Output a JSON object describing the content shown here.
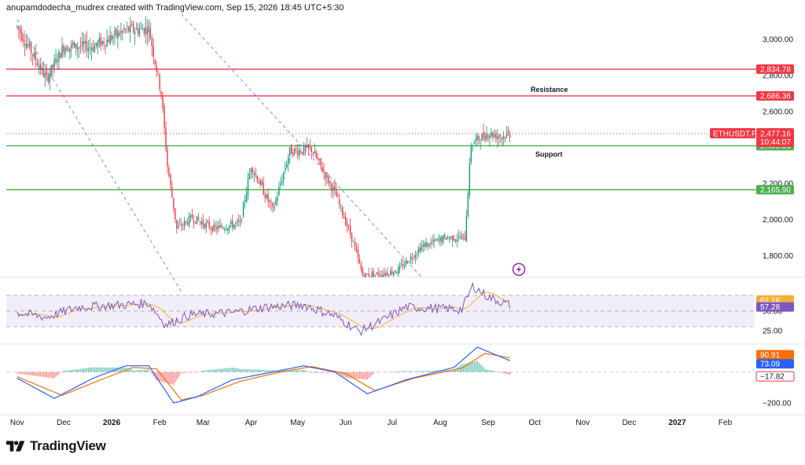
{
  "header": {
    "credit": "anupamdodecha_mudrex created with TradingView.com, Sep 15, 2026 18:45 UTC+5:30"
  },
  "logo": {
    "text": "TradingView"
  },
  "colors": {
    "up": "#089981",
    "down": "#f23645",
    "resistance": "#f23645",
    "support": "#4caf50",
    "trend": "#2962ff",
    "rsi": "#7e57c2",
    "rsi_ma": "#f2b13a",
    "macd": "#2962ff",
    "signal": "#ff6d00",
    "symbol_badge": "#f23645"
  },
  "chart_data": [
    {
      "type": "candlestick",
      "symbol": "ETHUSDT.P",
      "price_axis_ticks": [
        "3,000.00",
        "2,800.00",
        "2,600.00",
        "2,200.00",
        "2,000.00",
        "1,800.00"
      ],
      "ylim": [
        1680,
        3140
      ],
      "last_price": {
        "value": "2,477.16",
        "countdown": "10:44:07",
        "level": 2477.16
      },
      "levels": [
        {
          "label": "2,834.78",
          "value": 2834.78,
          "kind": "resistance"
        },
        {
          "label": "2,686.36",
          "value": 2686.36,
          "kind": "resistance",
          "annotation": "Resistance"
        },
        {
          "label": "2,409.86",
          "value": 2409.86,
          "kind": "support",
          "annotation": "Support"
        },
        {
          "label": "2,165.90",
          "value": 2165.9,
          "kind": "support"
        }
      ],
      "trendlines": [
        {
          "from": [
            "2025-11-01",
            3110
          ],
          "to": [
            "2026-02-15",
            1600
          ]
        },
        {
          "from": [
            "2026-02-15",
            3140
          ],
          "to": [
            "2026-07-20",
            1680
          ]
        }
      ],
      "anchors": [
        [
          "2025-11-01",
          3070
        ],
        [
          "2025-11-20",
          2780
        ],
        [
          "2025-12-01",
          2960
        ],
        [
          "2025-12-20",
          2960
        ],
        [
          "2026-01-10",
          3050
        ],
        [
          "2026-01-25",
          3060
        ],
        [
          "2026-02-02",
          2700
        ],
        [
          "2026-02-06",
          2300
        ],
        [
          "2026-02-12",
          1950
        ],
        [
          "2026-02-22",
          2010
        ],
        [
          "2026-03-08",
          1950
        ],
        [
          "2026-03-25",
          1980
        ],
        [
          "2026-04-01",
          2300
        ],
        [
          "2026-04-15",
          2050
        ],
        [
          "2026-04-26",
          2380
        ],
        [
          "2026-05-10",
          2390
        ],
        [
          "2026-05-25",
          2150
        ],
        [
          "2026-06-05",
          1900
        ],
        [
          "2026-06-12",
          1690
        ],
        [
          "2026-06-25",
          1700
        ],
        [
          "2026-07-05",
          1720
        ],
        [
          "2026-07-20",
          1850
        ],
        [
          "2026-08-05",
          1900
        ],
        [
          "2026-08-17",
          1900
        ],
        [
          "2026-08-21",
          2420
        ],
        [
          "2026-09-01",
          2480
        ],
        [
          "2026-09-10",
          2460
        ],
        [
          "2026-09-15",
          2477
        ]
      ]
    },
    {
      "type": "line",
      "name": "RSI",
      "ylim": [
        10,
        90
      ],
      "band": [
        30,
        70
      ],
      "axis_ticks": [
        "50.00",
        "25.00"
      ],
      "badges": [
        {
          "label": "62.16",
          "value": 62.16,
          "kind": "rsi_ma"
        },
        {
          "label": "57.28",
          "value": 57.28,
          "kind": "rsi"
        }
      ],
      "anchors": [
        [
          "2025-11-01",
          48
        ],
        [
          "2025-11-20",
          42
        ],
        [
          "2025-12-10",
          55
        ],
        [
          "2026-01-10",
          58
        ],
        [
          "2026-01-25",
          60
        ],
        [
          "2026-02-05",
          32
        ],
        [
          "2026-02-20",
          45
        ],
        [
          "2026-03-20",
          48
        ],
        [
          "2026-04-10",
          55
        ],
        [
          "2026-05-05",
          58
        ],
        [
          "2026-05-25",
          44
        ],
        [
          "2026-06-10",
          24
        ],
        [
          "2026-06-25",
          38
        ],
        [
          "2026-07-10",
          55
        ],
        [
          "2026-08-15",
          52
        ],
        [
          "2026-08-22",
          82
        ],
        [
          "2026-09-01",
          68
        ],
        [
          "2026-09-15",
          57.28
        ]
      ]
    },
    {
      "type": "histogram_line",
      "name": "MACD",
      "ylim": [
        -260,
        170
      ],
      "axis_ticks": [
        "−200.00"
      ],
      "badges": [
        {
          "label": "90.91",
          "value": 90.91,
          "kind": "signal"
        },
        {
          "label": "73.09",
          "value": 73.09,
          "kind": "macd"
        },
        {
          "label": "−17.82",
          "value": -17.82,
          "kind": "hist"
        }
      ],
      "macd_anchors": [
        [
          "2025-11-01",
          -40
        ],
        [
          "2025-11-25",
          -170
        ],
        [
          "2025-12-20",
          -40
        ],
        [
          "2026-01-10",
          40
        ],
        [
          "2026-01-25",
          40
        ],
        [
          "2026-02-10",
          -200
        ],
        [
          "2026-02-25",
          -160
        ],
        [
          "2026-03-20",
          -50
        ],
        [
          "2026-04-15",
          0
        ],
        [
          "2026-05-05",
          40
        ],
        [
          "2026-05-25",
          0
        ],
        [
          "2026-06-15",
          -140
        ],
        [
          "2026-07-10",
          -50
        ],
        [
          "2026-08-10",
          30
        ],
        [
          "2026-08-25",
          160
        ],
        [
          "2026-09-15",
          73.09
        ]
      ],
      "signal_anchors": [
        [
          "2025-11-01",
          -30
        ],
        [
          "2025-11-30",
          -150
        ],
        [
          "2025-12-25",
          -50
        ],
        [
          "2026-01-15",
          30
        ],
        [
          "2026-01-30",
          20
        ],
        [
          "2026-02-15",
          -180
        ],
        [
          "2026-03-01",
          -150
        ],
        [
          "2026-03-25",
          -60
        ],
        [
          "2026-04-20",
          0
        ],
        [
          "2026-05-10",
          35
        ],
        [
          "2026-06-01",
          -10
        ],
        [
          "2026-06-20",
          -120
        ],
        [
          "2026-07-15",
          -40
        ],
        [
          "2026-08-15",
          25
        ],
        [
          "2026-08-30",
          120
        ],
        [
          "2026-09-15",
          90.91
        ]
      ]
    }
  ],
  "x_axis": {
    "start": "2025-10-25",
    "end": "2027-02-20",
    "labels": [
      {
        "text": "Nov",
        "date": "2025-11-01",
        "bold": false
      },
      {
        "text": "Dec",
        "date": "2025-12-01",
        "bold": false
      },
      {
        "text": "2026",
        "date": "2026-01-01",
        "bold": true
      },
      {
        "text": "Feb",
        "date": "2026-02-01",
        "bold": false
      },
      {
        "text": "Mar",
        "date": "2026-03-01",
        "bold": false
      },
      {
        "text": "Apr",
        "date": "2026-04-01",
        "bold": false
      },
      {
        "text": "May",
        "date": "2026-05-01",
        "bold": false
      },
      {
        "text": "Jun",
        "date": "2026-06-01",
        "bold": false
      },
      {
        "text": "Jul",
        "date": "2026-07-01",
        "bold": false
      },
      {
        "text": "Aug",
        "date": "2026-08-01",
        "bold": false
      },
      {
        "text": "Sep",
        "date": "2026-09-01",
        "bold": false
      },
      {
        "text": "Oct",
        "date": "2026-10-01",
        "bold": false
      },
      {
        "text": "Nov",
        "date": "2026-11-01",
        "bold": false
      },
      {
        "text": "Dec",
        "date": "2026-12-01",
        "bold": false
      },
      {
        "text": "2027",
        "date": "2027-01-01",
        "bold": true
      },
      {
        "text": "Feb",
        "date": "2027-02-01",
        "bold": false
      }
    ]
  }
}
